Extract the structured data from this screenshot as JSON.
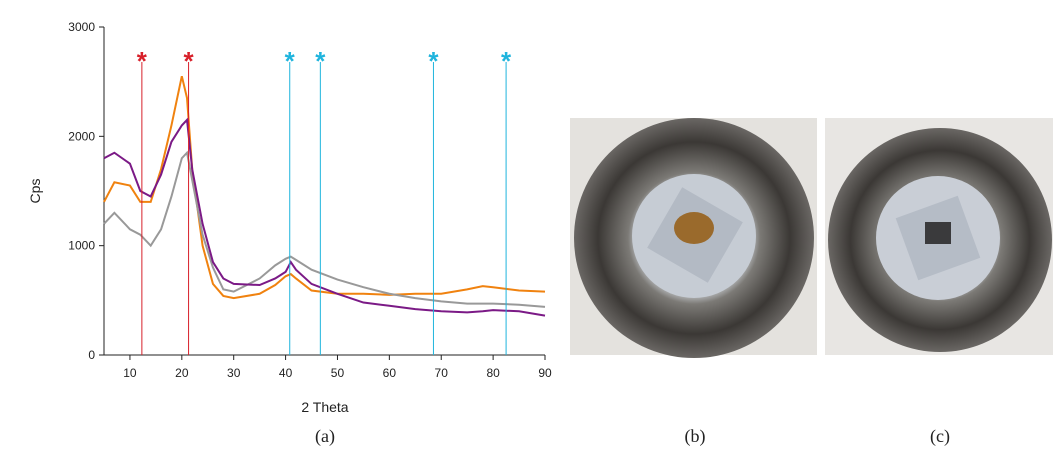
{
  "chart_data": {
    "type": "line",
    "xlabel": "2 Theta",
    "ylabel": "Cps",
    "x": [
      5,
      7,
      10,
      12,
      14,
      16,
      18,
      20,
      21,
      22,
      24,
      26,
      28,
      30,
      35,
      38,
      40,
      41,
      42,
      45,
      50,
      55,
      60,
      65,
      70,
      75,
      78,
      80,
      85,
      90
    ],
    "series": [
      {
        "color": "#f0820f",
        "values": [
          1400,
          1580,
          1550,
          1400,
          1400,
          1700,
          2100,
          2550,
          2350,
          1700,
          1000,
          650,
          540,
          520,
          560,
          640,
          720,
          740,
          700,
          590,
          560,
          560,
          550,
          560,
          560,
          600,
          630,
          620,
          590,
          580
        ]
      },
      {
        "color": "#999999",
        "values": [
          1200,
          1300,
          1150,
          1100,
          1000,
          1150,
          1450,
          1800,
          1850,
          1600,
          1100,
          800,
          600,
          580,
          700,
          820,
          880,
          900,
          870,
          780,
          690,
          620,
          560,
          520,
          490,
          470,
          470,
          470,
          460,
          440
        ]
      },
      {
        "color": "#7b1a86",
        "values": [
          1800,
          1850,
          1750,
          1500,
          1450,
          1650,
          1950,
          2100,
          2150,
          1700,
          1200,
          850,
          700,
          650,
          640,
          700,
          760,
          850,
          780,
          650,
          560,
          480,
          450,
          420,
          400,
          390,
          400,
          410,
          400,
          360
        ]
      }
    ],
    "xlim": [
      5,
      90
    ],
    "xticks": [
      10,
      20,
      30,
      40,
      50,
      60,
      70,
      80,
      90
    ],
    "ylim": [
      0,
      3000
    ],
    "yticks": [
      0,
      1000,
      2000,
      3000
    ],
    "markers": [
      {
        "x": 12.3,
        "label": "*",
        "color": "#d8202a"
      },
      {
        "x": 21.3,
        "label": "*",
        "color": "#d8202a"
      },
      {
        "x": 40.8,
        "label": "*",
        "color": "#1fb4dd"
      },
      {
        "x": 46.7,
        "label": "*",
        "color": "#1fb4dd"
      },
      {
        "x": 68.5,
        "label": "*",
        "color": "#1fb4dd"
      },
      {
        "x": 82.5,
        "label": "*",
        "color": "#1fb4dd"
      }
    ],
    "panel_labels": [
      "(a)",
      "(b)",
      "(c)"
    ]
  }
}
